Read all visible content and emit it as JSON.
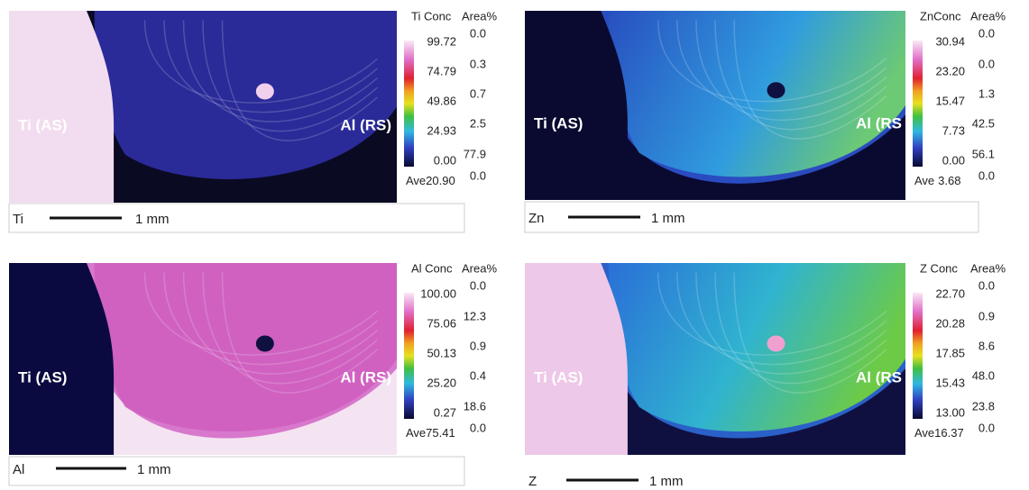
{
  "panels": [
    {
      "element": "Ti",
      "scale": "1 mm",
      "left_label": "Ti (AS)",
      "right_label": "Al (RS)",
      "conc_header": "Ti Conc",
      "area_header": "Area%",
      "conc_values": [
        "99.72",
        "74.79",
        "49.86",
        "24.93",
        "0.00"
      ],
      "area_values": [
        "0.0",
        "0.3",
        "0.7",
        "2.5",
        "77.9",
        "0.0"
      ],
      "ave_label": "Ave",
      "ave_value": "20.90"
    },
    {
      "element": "Zn",
      "scale": "1 mm",
      "left_label": "Ti (AS)",
      "right_label": "Al (RS",
      "conc_header": "ZnConc",
      "area_header": "Area%",
      "conc_values": [
        "30.94",
        "23.20",
        "15.47",
        "7.73",
        "0.00"
      ],
      "area_values": [
        "0.0",
        "0.0",
        "1.3",
        "42.5",
        "56.1",
        "0.0"
      ],
      "ave_label": "Ave",
      "ave_value": "3.68"
    },
    {
      "element": "Al",
      "scale": "1 mm",
      "left_label": "Ti (AS)",
      "right_label": "Al (RS)",
      "conc_header": "Al Conc",
      "area_header": "Area%",
      "conc_values": [
        "100.00",
        "75.06",
        "50.13",
        "25.20",
        "0.27"
      ],
      "area_values": [
        "0.0",
        "12.3",
        "0.9",
        "0.4",
        "18.6",
        "0.0"
      ],
      "ave_label": "Ave",
      "ave_value": "75.41"
    },
    {
      "element": "Z",
      "scale": "1 mm",
      "left_label": "Ti (AS)",
      "right_label": "Al (RS",
      "conc_header": "Z Conc",
      "area_header": "Area%",
      "conc_values": [
        "22.70",
        "20.28",
        "17.85",
        "15.43",
        "13.00"
      ],
      "area_values": [
        "0.0",
        "0.9",
        "8.6",
        "48.0",
        "23.8",
        "0.0"
      ],
      "ave_label": "Ave",
      "ave_value": "16.37"
    }
  ]
}
